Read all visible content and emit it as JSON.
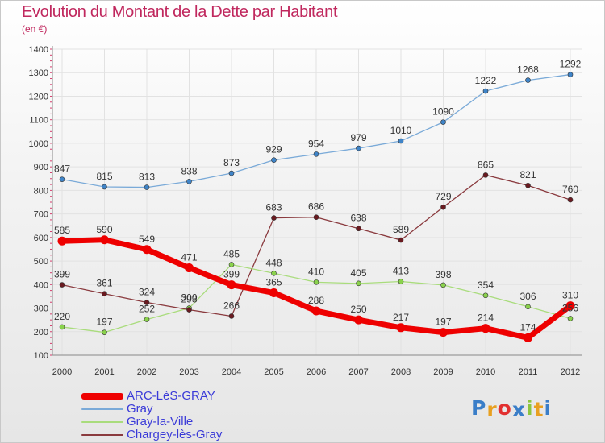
{
  "chart_data": {
    "type": "line",
    "title": "Evolution du Montant de la Dette par Habitant",
    "subtitle": "(en €)",
    "x": [
      "2000",
      "2001",
      "2002",
      "2003",
      "2004",
      "2005",
      "2006",
      "2007",
      "2008",
      "2009",
      "2010",
      "2011",
      "2012"
    ],
    "y_ticks": [
      100,
      200,
      300,
      400,
      500,
      600,
      700,
      800,
      900,
      1000,
      1100,
      1200,
      1300,
      1400
    ],
    "ylim": [
      100,
      1400
    ],
    "grid": true,
    "legend_position": "bottom-left",
    "series": [
      {
        "name": "Gray",
        "color": "#7aaad8",
        "marker": "#3f84c8",
        "width": 1.3,
        "values": [
          847,
          815,
          813,
          838,
          873,
          929,
          954,
          979,
          1010,
          1090,
          1222,
          1268,
          1292
        ]
      },
      {
        "name": "Gray-la-Ville",
        "color": "#a9dc7c",
        "marker": "#8ad24c",
        "width": 1.3,
        "values": [
          220,
          197,
          252,
          300,
          485,
          448,
          410,
          405,
          413,
          398,
          354,
          306,
          256
        ]
      },
      {
        "name": "Chargey-lès-Gray",
        "color": "#8a3a3e",
        "marker": "#6a1a20",
        "width": 1.3,
        "values": [
          399,
          361,
          324,
          293,
          266,
          683,
          686,
          638,
          589,
          729,
          865,
          821,
          760
        ]
      },
      {
        "name": "ARC-LèS-GRAY",
        "color": "#ee0000",
        "marker": "#ee0000",
        "width": 7,
        "values": [
          585,
          590,
          549,
          471,
          399,
          365,
          288,
          250,
          217,
          197,
          214,
          174,
          310
        ]
      }
    ],
    "legend_order": [
      "ARC-LèS-GRAY",
      "Gray",
      "Gray-la-Ville",
      "Chargey-lès-Gray"
    ]
  },
  "logo": {
    "text": "Proxiti",
    "letter_colors": [
      "#3a7ec8",
      "#e8a020",
      "#e23030",
      "#3a7ec8",
      "#8cc63e",
      "#e8a020",
      "#3a7ec8"
    ]
  }
}
